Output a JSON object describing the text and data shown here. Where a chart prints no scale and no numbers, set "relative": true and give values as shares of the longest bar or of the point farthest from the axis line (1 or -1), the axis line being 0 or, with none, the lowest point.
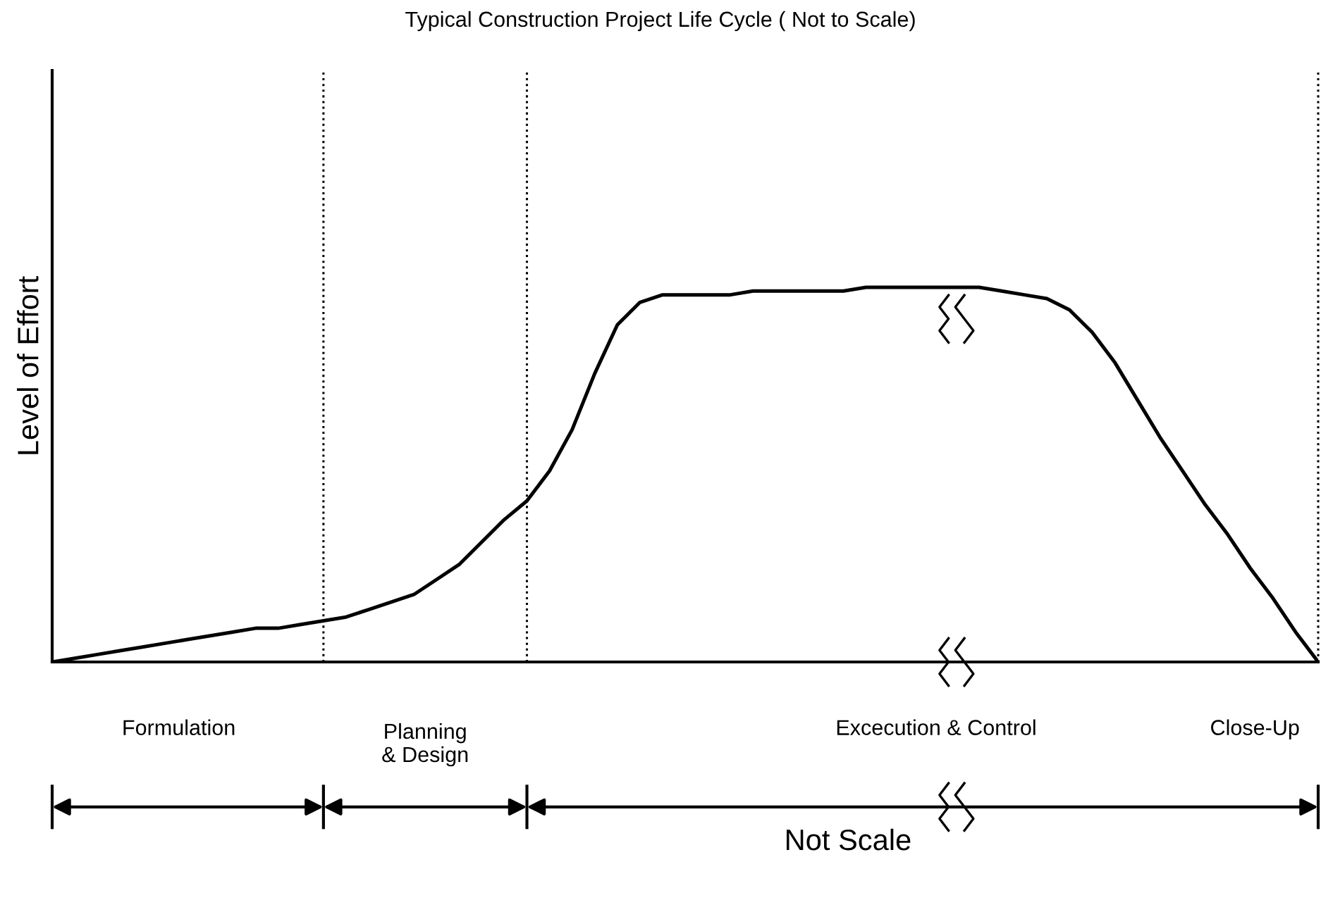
{
  "chart_data": {
    "type": "line",
    "title": "Typical Construction Project Life Cycle ( Not to Scale)",
    "ylabel": "Level of Effort",
    "relative": true,
    "categories": [
      null,
      null,
      null,
      null,
      null,
      null,
      null,
      null,
      null,
      null,
      null,
      null,
      null,
      null,
      null,
      null,
      null,
      null,
      null,
      null,
      null,
      null,
      null,
      null,
      null,
      null,
      null,
      null,
      null,
      null,
      null,
      null,
      null,
      null,
      null,
      null,
      null,
      null,
      null,
      null,
      null,
      null,
      null,
      null,
      null,
      null,
      null,
      null,
      null,
      null,
      null,
      null,
      null,
      null,
      null,
      null,
      null
    ],
    "series": [
      {
        "color": "#000000",
        "values": [
          0,
          0.01,
          0.02,
          0.03,
          0.04,
          0.05,
          0.06,
          0.07,
          0.08,
          0.09,
          0.09,
          0.1,
          0.11,
          0.12,
          0.14,
          0.16,
          0.18,
          0.22,
          0.26,
          0.32,
          0.38,
          0.43,
          0.51,
          0.62,
          0.77,
          0.9,
          0.96,
          0.98,
          0.98,
          0.98,
          0.98,
          0.99,
          0.99,
          0.99,
          0.99,
          0.99,
          1,
          1,
          1,
          1,
          1,
          1,
          0.99,
          0.98,
          0.97,
          0.94,
          0.88,
          0.8,
          0.7,
          0.6,
          0.51,
          0.42,
          0.34,
          0.25,
          0.17,
          0.08,
          0
        ]
      }
    ],
    "annotations": [
      "Formulation",
      "Planning\n& Design",
      "Excecution & Control",
      "Close-Up",
      "Not Scale"
    ],
    "grid": false,
    "legend": false,
    "marker": "none",
    "line_style": "solid"
  }
}
